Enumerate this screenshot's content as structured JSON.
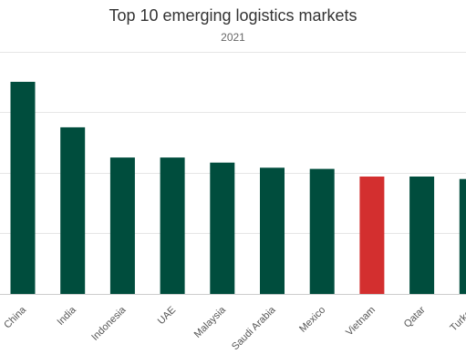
{
  "chart_data": {
    "type": "bar",
    "title": "Top 10 emerging logistics markets",
    "subtitle": "2021",
    "categories": [
      "China",
      "India",
      "Indonesia",
      "UAE",
      "Malaysia",
      "Saudi Arabia",
      "Mexico",
      "Vietnam",
      "Qatar",
      "Turkey"
    ],
    "values": [
      8.4,
      6.6,
      5.4,
      5.4,
      5.2,
      5.0,
      4.95,
      4.65,
      4.65,
      4.55
    ],
    "highlight": "Vietnam",
    "ylim": [
      0,
      9
    ],
    "grid": true,
    "legend": "none",
    "xlabel": "",
    "ylabel": "",
    "colors": {
      "bar": "#004d3d",
      "highlight": "#d32f2f"
    }
  }
}
